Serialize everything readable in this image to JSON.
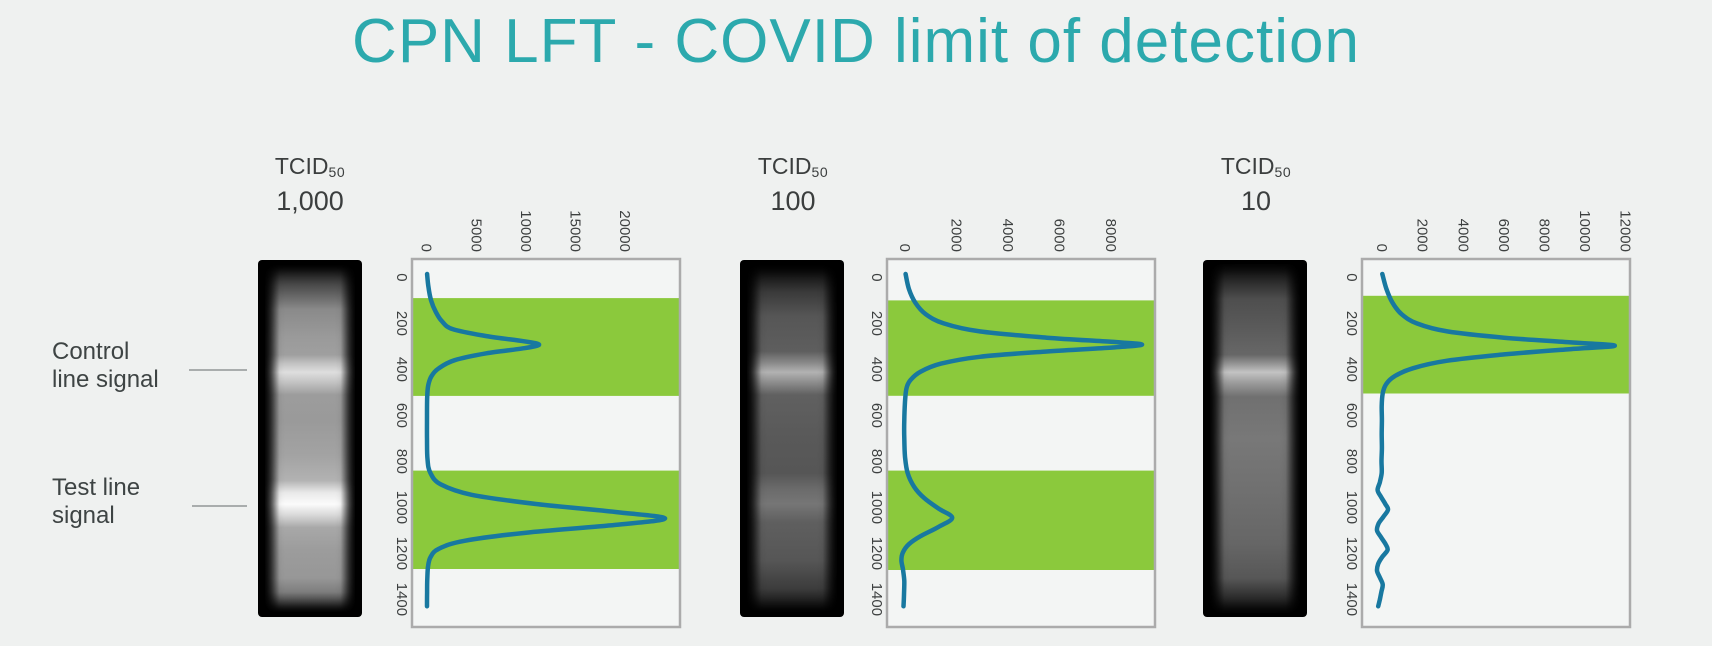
{
  "title": "CPN LFT - COVID limit of detection",
  "colors": {
    "background": "#eff1f0",
    "title_text": "#2ca9ad",
    "curve": "#1878a0",
    "highlight_band": "#8bc93c",
    "chart_border": "#ababab",
    "chart_fill": "#f3f5f4",
    "label_text": "#3d4040",
    "leader_line": "#a9adad"
  },
  "side_labels": {
    "control_line1": "Control",
    "control_line2": "line signal",
    "test_line1": "Test line",
    "test_line2": "signal"
  },
  "panels": [
    {
      "tcid_main": "TCID",
      "tcid_sub": "50",
      "titer": "1,000",
      "visible_lines": [
        "control",
        "test"
      ]
    },
    {
      "tcid_main": "TCID",
      "tcid_sub": "50",
      "titer": "100",
      "visible_lines": [
        "control",
        "test-faint"
      ]
    },
    {
      "tcid_main": "TCID",
      "tcid_sub": "50",
      "titer": "10",
      "visible_lines": [
        "control"
      ]
    }
  ],
  "chart_data": [
    {
      "type": "line",
      "panel": "TCID50 1,000",
      "orientation": "rotated-90 (position runs vertically, intensity runs horizontally)",
      "value_axis": {
        "min": -1500,
        "max": 25500,
        "ticks": [
          0,
          5000,
          10000,
          15000,
          20000
        ]
      },
      "position_axis": {
        "min": -80,
        "max": 1520,
        "ticks": [
          0,
          200,
          400,
          600,
          800,
          1000,
          1200,
          1400
        ]
      },
      "green_bands": [
        [
          90,
          515
        ],
        [
          840,
          1268
        ]
      ],
      "peaks": {
        "control": {
          "position": 292,
          "value": 11300
        },
        "test": {
          "position": 1048,
          "value": 24000
        }
      },
      "series": [
        {
          "name": "signal-intensity-profile",
          "points": [
            [
              -15,
              20
            ],
            [
              40,
              150
            ],
            [
              100,
              420
            ],
            [
              150,
              900
            ],
            [
              190,
              1500
            ],
            [
              225,
              2600
            ],
            [
              255,
              6000
            ],
            [
              278,
              9800
            ],
            [
              292,
              11300
            ],
            [
              308,
              9800
            ],
            [
              330,
              6000
            ],
            [
              360,
              2800
            ],
            [
              395,
              1200
            ],
            [
              430,
              450
            ],
            [
              470,
              130
            ],
            [
              520,
              30
            ],
            [
              600,
              10
            ],
            [
              700,
              10
            ],
            [
              790,
              60
            ],
            [
              850,
              350
            ],
            [
              900,
              1400
            ],
            [
              945,
              4500
            ],
            [
              985,
              11000
            ],
            [
              1020,
              19000
            ],
            [
              1048,
              24000
            ],
            [
              1076,
              19000
            ],
            [
              1110,
              10000
            ],
            [
              1145,
              3800
            ],
            [
              1180,
              1200
            ],
            [
              1215,
              380
            ],
            [
              1255,
              120
            ],
            [
              1310,
              40
            ],
            [
              1370,
              20
            ],
            [
              1430,
              10
            ]
          ]
        }
      ]
    },
    {
      "type": "line",
      "panel": "TCID50 100",
      "orientation": "rotated-90 (position runs vertically, intensity runs horizontally)",
      "value_axis": {
        "min": -700,
        "max": 9700,
        "ticks": [
          0,
          2000,
          4000,
          6000,
          8000
        ]
      },
      "position_axis": {
        "min": -80,
        "max": 1520,
        "ticks": [
          0,
          200,
          400,
          600,
          800,
          1000,
          1200,
          1400
        ]
      },
      "green_bands": [
        [
          100,
          515
        ],
        [
          840,
          1272
        ]
      ],
      "peaks": {
        "control": {
          "position": 292,
          "value": 9200
        },
        "test": {
          "position": 1045,
          "value": 1830
        }
      },
      "series": [
        {
          "name": "signal-intensity-profile",
          "points": [
            [
              -15,
              20
            ],
            [
              50,
              150
            ],
            [
              110,
              400
            ],
            [
              160,
              800
            ],
            [
              200,
              1500
            ],
            [
              235,
              2900
            ],
            [
              262,
              5500
            ],
            [
              280,
              8000
            ],
            [
              292,
              9200
            ],
            [
              305,
              8000
            ],
            [
              322,
              5500
            ],
            [
              345,
              2900
            ],
            [
              375,
              1400
            ],
            [
              410,
              600
            ],
            [
              445,
              220
            ],
            [
              480,
              60
            ],
            [
              540,
              0
            ],
            [
              620,
              -30
            ],
            [
              700,
              -30
            ],
            [
              780,
              0
            ],
            [
              850,
              100
            ],
            [
              910,
              350
            ],
            [
              960,
              750
            ],
            [
              1005,
              1300
            ],
            [
              1045,
              1830
            ],
            [
              1085,
              1300
            ],
            [
              1125,
              600
            ],
            [
              1160,
              150
            ],
            [
              1195,
              -80
            ],
            [
              1230,
              -140
            ],
            [
              1270,
              -80
            ],
            [
              1320,
              -30
            ],
            [
              1380,
              -40
            ],
            [
              1430,
              -60
            ]
          ]
        }
      ]
    },
    {
      "type": "line",
      "panel": "TCID50 10",
      "orientation": "rotated-90 (position runs vertically, intensity runs horizontally)",
      "value_axis": {
        "min": -1000,
        "max": 12200,
        "ticks": [
          0,
          2000,
          4000,
          6000,
          8000,
          10000,
          12000
        ]
      },
      "position_axis": {
        "min": -80,
        "max": 1520,
        "ticks": [
          0,
          200,
          400,
          600,
          800,
          1000,
          1200,
          1400
        ]
      },
      "green_bands": [
        [
          80,
          505
        ]
      ],
      "peaks": {
        "control": {
          "position": 297,
          "value": 11450
        },
        "test": null
      },
      "series": [
        {
          "name": "signal-intensity-profile",
          "points": [
            [
              -15,
              0
            ],
            [
              50,
              200
            ],
            [
              110,
              500
            ],
            [
              160,
              950
            ],
            [
              200,
              1700
            ],
            [
              235,
              3200
            ],
            [
              262,
              6000
            ],
            [
              282,
              9200
            ],
            [
              297,
              11450
            ],
            [
              312,
              9200
            ],
            [
              335,
              6000
            ],
            [
              362,
              3200
            ],
            [
              395,
              1500
            ],
            [
              430,
              600
            ],
            [
              465,
              180
            ],
            [
              505,
              20
            ],
            [
              560,
              -30
            ],
            [
              620,
              -20
            ],
            [
              680,
              -30
            ],
            [
              740,
              -20
            ],
            [
              800,
              -40
            ],
            [
              850,
              -30
            ],
            [
              890,
              -120
            ],
            [
              925,
              -230
            ],
            [
              955,
              -60
            ],
            [
              985,
              150
            ],
            [
              1010,
              280
            ],
            [
              1040,
              60
            ],
            [
              1070,
              -180
            ],
            [
              1100,
              -260
            ],
            [
              1130,
              -60
            ],
            [
              1160,
              160
            ],
            [
              1185,
              260
            ],
            [
              1215,
              0
            ],
            [
              1245,
              -200
            ],
            [
              1275,
              -260
            ],
            [
              1305,
              -120
            ],
            [
              1335,
              20
            ],
            [
              1365,
              -40
            ],
            [
              1400,
              -120
            ],
            [
              1430,
              -200
            ]
          ]
        }
      ]
    }
  ]
}
